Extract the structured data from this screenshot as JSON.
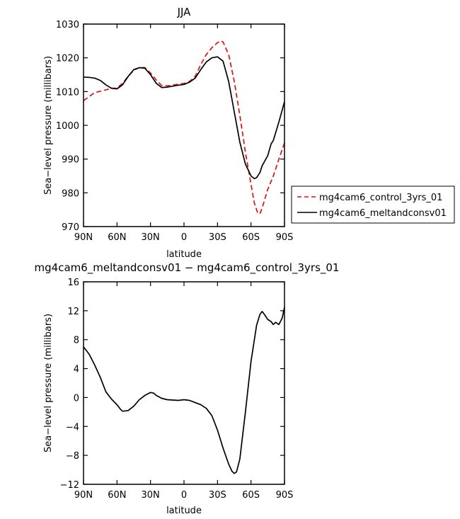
{
  "chart_data": [
    {
      "type": "line",
      "title": "JJA",
      "xlabel": "latitude",
      "ylabel": "Sea−level pressure (millibars)",
      "x_ticks": [
        "90N",
        "60N",
        "30N",
        "0",
        "30S",
        "60S",
        "90S"
      ],
      "x_tick_values": [
        90,
        60,
        30,
        0,
        -30,
        -60,
        -90
      ],
      "y_ticks": [
        "970",
        "980",
        "990",
        "1000",
        "1010",
        "1020",
        "1030"
      ],
      "xlim": [
        90,
        -90
      ],
      "ylim": [
        970,
        1030
      ],
      "legend": {
        "placement": "right",
        "entries": [
          "mg4cam6_control_3yrs_01",
          "mg4cam6_meltandconsv01"
        ]
      },
      "series": [
        {
          "name": "mg4cam6_control_3yrs_01",
          "color": "#e01010",
          "dash": "dashed",
          "x": [
            90,
            85,
            80,
            75,
            70,
            65,
            60,
            55,
            50,
            45,
            40,
            35,
            30,
            25,
            20,
            15,
            10,
            5,
            0,
            -5,
            -10,
            -15,
            -20,
            -25,
            -30,
            -33,
            -35,
            -40,
            -45,
            -50,
            -55,
            -60,
            -63,
            -66,
            -68,
            -70,
            -75,
            -80,
            -85,
            -90
          ],
          "y": [
            1007.3,
            1008.5,
            1009.7,
            1010.1,
            1010.5,
            1011.0,
            1011.0,
            1012.5,
            1014.5,
            1016.3,
            1017.1,
            1017.1,
            1015.5,
            1013.5,
            1011.8,
            1011.7,
            1011.9,
            1012.2,
            1012.4,
            1013.0,
            1014.5,
            1018.0,
            1021.0,
            1023.0,
            1024.5,
            1025.0,
            1024.7,
            1021.0,
            1013.0,
            1003.0,
            992.0,
            982.5,
            977.0,
            974.0,
            973.8,
            975.5,
            981.0,
            985.0,
            990.0,
            994.8
          ]
        },
        {
          "name": "mg4cam6_meltandconsv01",
          "color": "#000000",
          "dash": "solid",
          "x": [
            90,
            85,
            80,
            75,
            70,
            65,
            60,
            55,
            50,
            45,
            40,
            35,
            30,
            25,
            20,
            15,
            10,
            5,
            0,
            -5,
            -10,
            -15,
            -20,
            -25,
            -30,
            -35,
            -40,
            -45,
            -50,
            -55,
            -60,
            -63,
            -65,
            -68,
            -70,
            -75,
            -78,
            -80,
            -85,
            -90
          ],
          "y": [
            1014.3,
            1014.2,
            1014.0,
            1013.3,
            1012.0,
            1011.0,
            1010.8,
            1012.0,
            1014.5,
            1016.5,
            1017.1,
            1016.9,
            1015.0,
            1012.5,
            1011.2,
            1011.3,
            1011.6,
            1011.9,
            1012.1,
            1012.8,
            1014.0,
            1016.5,
            1018.8,
            1020.0,
            1020.3,
            1019.0,
            1013.0,
            1004.0,
            995.0,
            988.5,
            985.0,
            984.2,
            984.5,
            986.0,
            988.0,
            991.0,
            994.5,
            995.5,
            1001.0,
            1007.0
          ]
        }
      ]
    },
    {
      "type": "line",
      "title": "mg4cam6_meltandconsv01 − mg4cam6_control_3yrs_01",
      "xlabel": "latitude",
      "ylabel": "Sea−level pressure (millibars)",
      "x_ticks": [
        "90N",
        "60N",
        "30N",
        "0",
        "30S",
        "60S",
        "90S"
      ],
      "x_tick_values": [
        90,
        60,
        30,
        0,
        -30,
        -60,
        -90
      ],
      "y_ticks": [
        "−12",
        "−8",
        "−4",
        "0",
        "4",
        "8",
        "12",
        "16"
      ],
      "xlim": [
        90,
        -90
      ],
      "ylim": [
        -12,
        16
      ],
      "series": [
        {
          "name": "mg4cam6_meltandconsv01 − mg4cam6_control_3yrs_01",
          "color": "#000000",
          "dash": "solid",
          "x": [
            90,
            85,
            80,
            75,
            70,
            65,
            60,
            57,
            55,
            50,
            45,
            40,
            35,
            30,
            27,
            25,
            20,
            15,
            10,
            5,
            0,
            -5,
            -10,
            -15,
            -20,
            -25,
            -30,
            -35,
            -40,
            -43,
            -45,
            -47,
            -50,
            -55,
            -60,
            -65,
            -68,
            -70,
            -72,
            -75,
            -78,
            -80,
            -82,
            -85,
            -88,
            -90
          ],
          "y": [
            7.0,
            6.0,
            4.5,
            2.8,
            0.8,
            -0.2,
            -1.0,
            -1.6,
            -1.9,
            -1.8,
            -1.2,
            -0.3,
            0.3,
            0.7,
            0.6,
            0.3,
            -0.1,
            -0.3,
            -0.35,
            -0.4,
            -0.3,
            -0.4,
            -0.7,
            -1.0,
            -1.5,
            -2.5,
            -4.5,
            -7.0,
            -9.2,
            -10.2,
            -10.5,
            -10.3,
            -8.5,
            -2.0,
            5.0,
            10.0,
            11.5,
            11.9,
            11.5,
            10.8,
            10.5,
            10.1,
            10.4,
            10.1,
            11.0,
            12.5
          ]
        }
      ]
    }
  ]
}
